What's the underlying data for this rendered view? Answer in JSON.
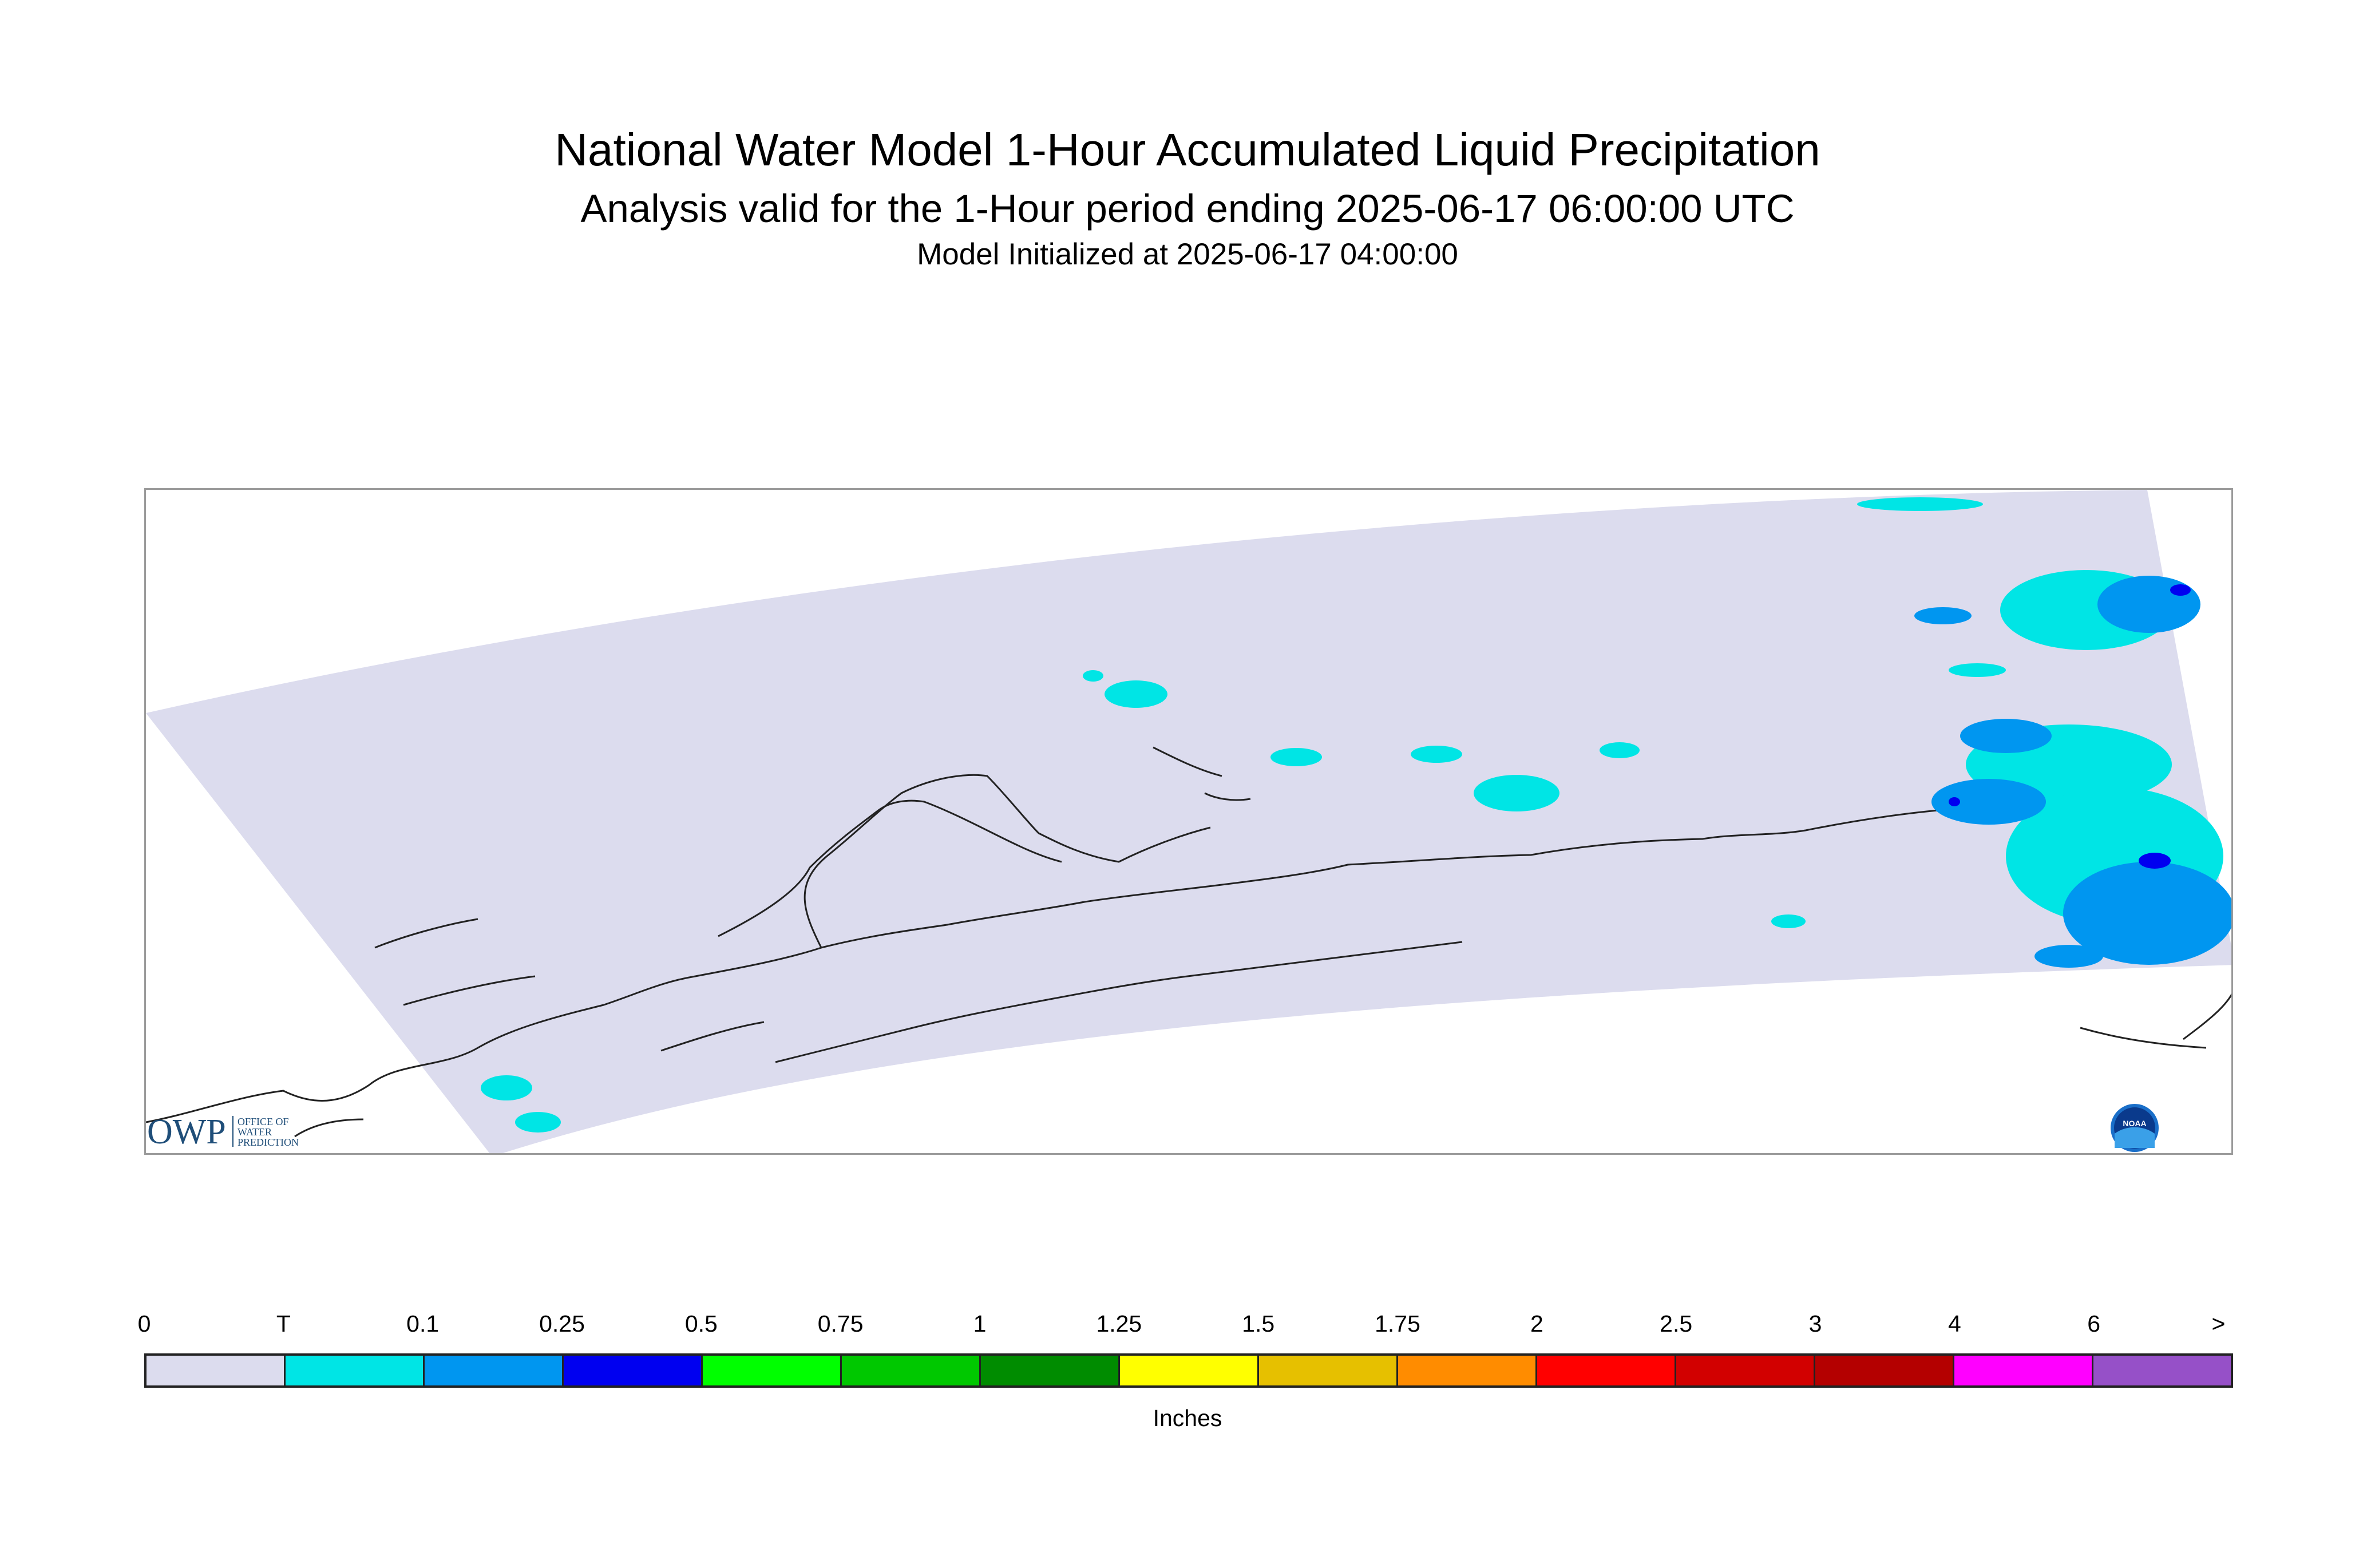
{
  "header": {
    "title": "National Water Model 1-Hour Accumulated Liquid Precipitation",
    "subtitle": "Analysis valid for the 1-Hour period ending 2025-06-17 06:00:00 UTC",
    "init_line": "Model Initialized at 2025-06-17 04:00:00"
  },
  "logos": {
    "owp_mark": "OWP",
    "owp_text_lines": [
      "OFFICE OF",
      "WATER",
      "PREDICTION"
    ],
    "noaa_mark": "NOAA"
  },
  "colorbar": {
    "tick_labels": [
      "0",
      "T",
      "0.1",
      "0.25",
      "0.5",
      "0.75",
      "1",
      "1.25",
      "1.5",
      "1.75",
      "2",
      "2.5",
      "3",
      "4",
      "6",
      ">"
    ],
    "colors": [
      "#dcdcee",
      "#00e5e5",
      "#0096f0",
      "#0000f0",
      "#00ff00",
      "#00c800",
      "#008c00",
      "#ffff00",
      "#e6c000",
      "#ff8c00",
      "#ff0000",
      "#d20000",
      "#b40000",
      "#ff00ff",
      "#9650c8"
    ],
    "units": "Inches"
  },
  "map": {
    "domain_color": "#dcdcee",
    "coast_color": "#222222",
    "precip_colors": {
      "trace": "#00e5e5",
      "light": "#0096f0",
      "moderate": "#0000f0"
    }
  }
}
